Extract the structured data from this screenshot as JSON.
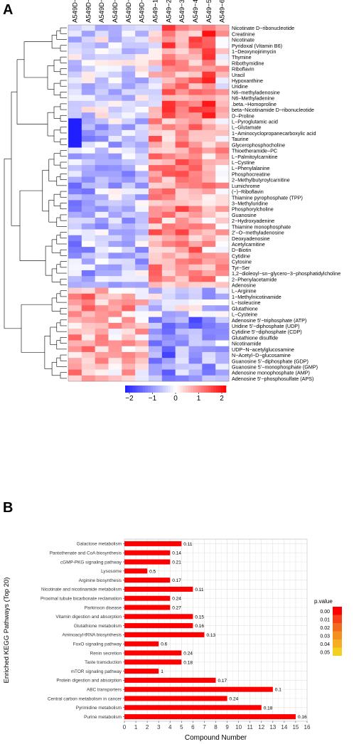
{
  "panels": {
    "a": "A",
    "b": "B"
  },
  "heatmap": {
    "columns": [
      "A549D−1",
      "A549D−2",
      "A549D−3",
      "A549D−4",
      "A549D−5",
      "A549D−6",
      "A549−1",
      "A549−2",
      "A549−3",
      "A549−4",
      "A549−5",
      "A549−6"
    ],
    "rows": [
      "Nicotinate D−ribonucleotide",
      "Creatinine",
      "Nicotinate",
      "Pyridoxal (Vitamin B6)",
      "1−Deoxynojirimycin",
      "Thymine",
      "Ribothymidine",
      "Riboflavin",
      "Uracil",
      "Hypoxanthine",
      "Uridine",
      "N6−methyladenosine",
      "N6−Methyladenine",
      ".beta.−Homoproline",
      "beta−Nicotinamide D−ribonucleotide",
      "D−Proline",
      "L−Pyroglutamic acid",
      "L−Glutamate",
      "1−Aminocyclopropanecarboxylic acid",
      "Taurine",
      "Glycerophosphocholine",
      "Thioetheramide−PC",
      "L−Palmitoylcarnitine",
      "L−Cystine",
      "L−Phenylalanine",
      "Phosphocreatine",
      "2−Methylbutyroylcarnitine",
      "Lumichrome",
      "(−)−Riboflavin",
      "Thiamine pyrophosphate (TPP)",
      "3−Methyluridine",
      "Phosphorylcholine",
      "Guanosine",
      "2−Hydroxyadenine",
      "Thiamine monophosphate",
      "2'−O−methyladenosine",
      "Deoxyadenosine",
      "Acetylcarnitine",
      "D−Biotin",
      "Cytidine",
      "Cytosine",
      "Tyr−Ser",
      "1,2−dioleoyl−sn−glycero−3−phosphatidylcholine",
      "2−Phenylacetamide",
      "Adenosine",
      "L−Arginine",
      "1−Methylnicotinamide",
      "L−Isoleucine",
      "Glutathione",
      "L−Cysteine",
      "Adenosine 5'−triphosphate (ATP)",
      "Uridine 5'−diphosphate (UDP)",
      "Cytidine 5'−diphosphate (CDP)",
      "Glutathione disulfide",
      "Nicotinamide",
      "UDP−N−acetylglucosamine",
      "N−Acetyl−D−glucosamine",
      "Guanosine 5'−diphosphate (GDP)",
      "Guanosine 5'−monophosphate (GMP)",
      "Adenosine monophosphate (AMP)",
      "Adenosine 5'−phosphosulfate (APS)"
    ],
    "colorscale": {
      "low": "#1f1fff",
      "mid": "#ffffff",
      "high": "#ff0000",
      "min": -2,
      "max": 2
    },
    "legend_ticks": [
      "−2",
      "−1",
      "0",
      "1",
      "2"
    ]
  },
  "chart_data": {
    "type": "bar",
    "orientation": "horizontal",
    "categories": [
      "Galactose metabolism",
      "Pantothenate and CoA biosynthesis",
      "cGMP-PKG signaling pathway",
      "Lysosome",
      "Arginine biosynthesis",
      "Nicotinate and nicotinamide metabolism",
      "Proximal tubule bicarbonate reclamation",
      "Parkinson disease",
      "Vitamin digestion and absorption",
      "Glutathione metabolism",
      "Aminoacyl-tRNA biosynthesis",
      "FoxO signaling pathway",
      "Renin secretion",
      "Taste transduction",
      "mTOR signaling pathway",
      "Protein digestion and absorption",
      "ABC transporters",
      "Central carbon metabolism in cancer",
      "Pyrimidine metabolism",
      "Purine metabolism"
    ],
    "values": [
      5,
      4,
      4,
      2,
      4,
      6,
      4,
      4,
      6,
      6,
      7,
      3,
      5,
      5,
      3,
      8,
      13,
      9,
      12,
      15
    ],
    "labels": [
      "0.11",
      "0.14",
      "0.21",
      "0.5",
      "0.17",
      "0.11",
      "0.24",
      "0.27",
      "0.15",
      "0.16",
      "0.13",
      "0.6",
      "0.24",
      "0.18",
      "1",
      "0.17",
      "0.1",
      "0.24",
      "0.18",
      "0.16"
    ],
    "xlabel": "Compound Number",
    "ylabel": "Enriched KEGG Pathways (Top 20)",
    "xlim": [
      0,
      16
    ],
    "xticks": [
      "0",
      "1",
      "2",
      "3",
      "4",
      "5",
      "6",
      "7",
      "8",
      "9",
      "10",
      "11",
      "12",
      "13",
      "14",
      "15",
      "16"
    ],
    "grid": true,
    "bar_color": "#ff0000",
    "legend": {
      "title": "p.value",
      "position": "right",
      "entries": [
        "0.00",
        "0.01",
        "0.02",
        "0.03",
        "0.04",
        "0.05"
      ],
      "colors": [
        "#ff0000",
        "#f6401a",
        "#f26a1f",
        "#f39020",
        "#f5ae22",
        "#f2d020"
      ]
    }
  }
}
